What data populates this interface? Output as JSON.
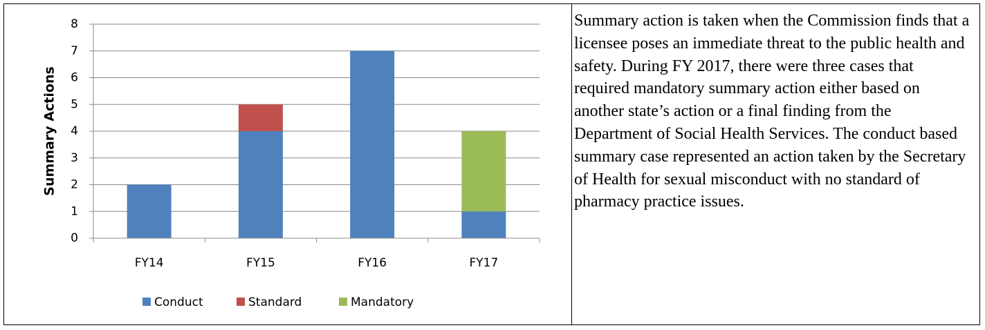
{
  "chart_data": {
    "type": "stacked_bar",
    "y_label": "Summary Actions",
    "categories": [
      "FY14",
      "FY15",
      "FY16",
      "FY17"
    ],
    "series": [
      {
        "name": "Conduct",
        "color": "#4f81bd",
        "values": [
          2,
          4,
          7,
          1
        ]
      },
      {
        "name": "Standard",
        "color": "#c0504d",
        "values": [
          0,
          1,
          0,
          0
        ]
      },
      {
        "name": "Mandatory",
        "color": "#9bbb59",
        "values": [
          0,
          0,
          0,
          3
        ]
      }
    ],
    "ylim": [
      0,
      8
    ],
    "yticks": [
      0,
      1,
      2,
      3,
      4,
      5,
      6,
      7,
      8
    ],
    "grid": true,
    "legend": "bottom"
  },
  "paragraph": "Summary action is taken when the Commission finds that a licensee poses an immediate threat to the public health and safety. During FY 2017, there were three cases that required mandatory summary action either based on another state’s action or a final finding from the Department of Social Health Services. The conduct based summary case represented an action taken by the Secretary of Health for sexual misconduct with no standard of pharmacy practice issues."
}
